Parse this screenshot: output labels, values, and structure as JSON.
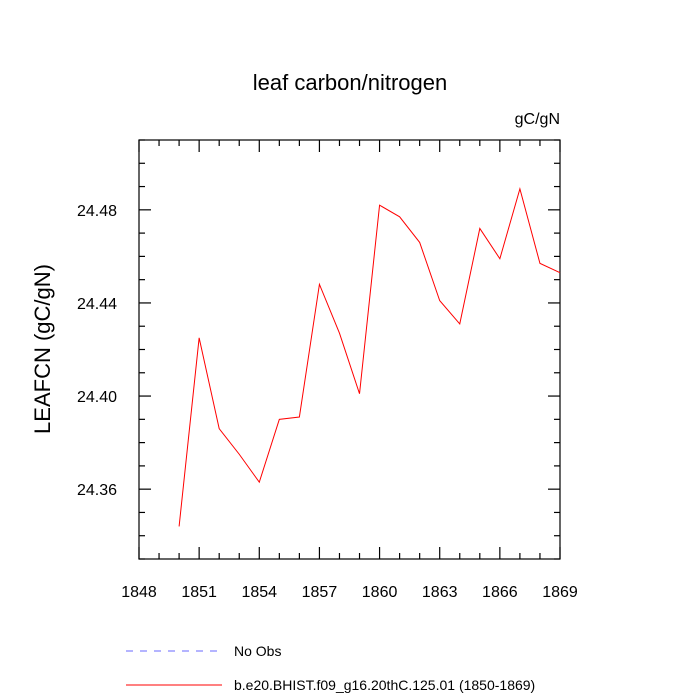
{
  "chart_data": {
    "type": "line",
    "title": "leaf carbon/nitrogen",
    "units_label": "gC/gN",
    "ylabel": "LEAFCN  (gC/gN)",
    "xlabel": "",
    "xlim": [
      1848,
      1869
    ],
    "ylim": [
      24.33,
      24.51
    ],
    "x_ticks": [
      1848,
      1851,
      1854,
      1857,
      1860,
      1863,
      1866,
      1869
    ],
    "x_tick_labels": [
      "1848",
      "1851",
      "1854",
      "1857",
      "1860",
      "1863",
      "1866",
      "1869"
    ],
    "y_ticks": [
      24.36,
      24.4,
      24.44,
      24.48
    ],
    "y_tick_labels": [
      "24.36",
      "24.40",
      "24.44",
      "24.48"
    ],
    "grid": false,
    "legend_position": "bottom",
    "series": [
      {
        "name": "b.e20.BHIST.f09_g16.20thC.125.01 (1850-1869)",
        "color": "#ff0000",
        "line_style": "solid",
        "x": [
          1850,
          1851,
          1852,
          1853,
          1854,
          1855,
          1856,
          1857,
          1858,
          1859,
          1860,
          1861,
          1862,
          1863,
          1864,
          1865,
          1866,
          1867,
          1868,
          1869
        ],
        "values": [
          24.344,
          24.425,
          24.386,
          24.375,
          24.363,
          24.39,
          24.391,
          24.448,
          24.427,
          24.401,
          24.482,
          24.477,
          24.466,
          24.441,
          24.431,
          24.472,
          24.459,
          24.489,
          24.457,
          24.453
        ]
      }
    ],
    "legend": [
      {
        "label": "No Obs",
        "color": "#6a6aff",
        "line_style": "dashed"
      },
      {
        "label": "b.e20.BHIST.f09_g16.20thC.125.01 (1850-1869)",
        "color": "#ff0000",
        "line_style": "solid"
      }
    ]
  }
}
